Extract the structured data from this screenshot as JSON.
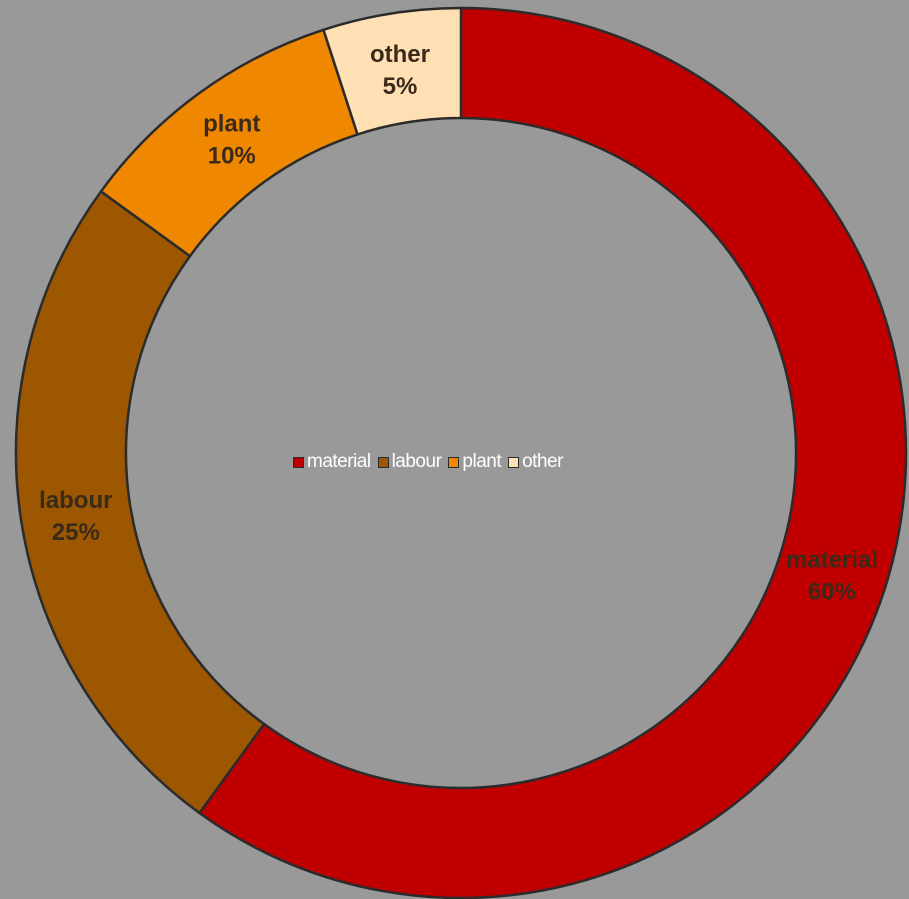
{
  "chart_data": {
    "type": "pie",
    "variant": "donut",
    "title": "",
    "categories": [
      "material",
      "labour",
      "plant",
      "other"
    ],
    "values": [
      60,
      25,
      10,
      5
    ],
    "value_labels": [
      "60%",
      "25%",
      "10%",
      "5%"
    ],
    "colors": [
      "#c00000",
      "#9c5700",
      "#ef8800",
      "#ffe0b4"
    ],
    "legend": {
      "position": "center",
      "entries": [
        "material",
        "labour",
        "plant",
        "other"
      ]
    },
    "data_labels": true,
    "background": "#999999"
  }
}
